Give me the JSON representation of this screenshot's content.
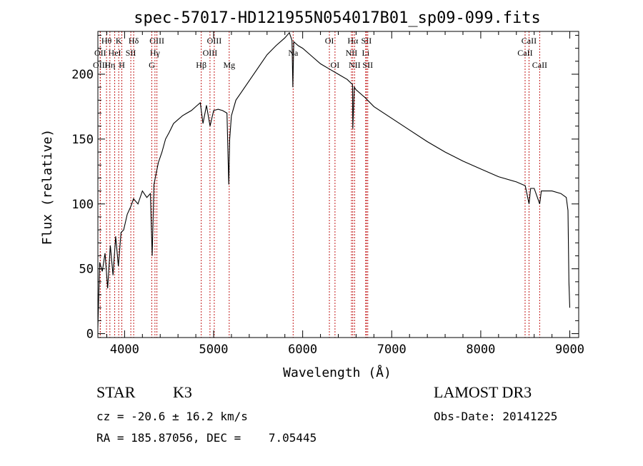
{
  "chart_data": {
    "type": "line",
    "title": "spec-57017-HD121955N054017B01_sp09-099.fits",
    "xlabel": "Wavelength (Å)",
    "ylabel": "Flux (relative)",
    "xlim": [
      3700,
      9100
    ],
    "ylim": [
      -3,
      233
    ],
    "x_ticks": [
      4000,
      5000,
      6000,
      7000,
      8000,
      9000
    ],
    "y_ticks": [
      0,
      50,
      100,
      150,
      200
    ],
    "grid": false,
    "series": [
      {
        "color": "#000000",
        "x": [
          3700,
          3720,
          3750,
          3780,
          3810,
          3840,
          3870,
          3900,
          3930,
          3960,
          3990,
          4030,
          4070,
          4100,
          4150,
          4200,
          4250,
          4290,
          4310,
          4330,
          4350,
          4380,
          4420,
          4460,
          4500,
          4550,
          4600,
          4650,
          4700,
          4750,
          4800,
          4850,
          4880,
          4920,
          4960,
          5000,
          5050,
          5100,
          5150,
          5170,
          5180,
          5200,
          5250,
          5300,
          5400,
          5500,
          5600,
          5700,
          5800,
          5850,
          5880,
          5890,
          5900,
          5950,
          6000,
          6100,
          6200,
          6300,
          6400,
          6500,
          6560,
          6563,
          6580,
          6600,
          6700,
          6800,
          7000,
          7200,
          7400,
          7600,
          7800,
          8000,
          8200,
          8400,
          8500,
          8542,
          8560,
          8600,
          8662,
          8680,
          8700,
          8800,
          8900,
          8960,
          8980,
          8990,
          9000
        ],
        "values": [
          5,
          55,
          48,
          62,
          35,
          68,
          45,
          75,
          52,
          78,
          80,
          92,
          98,
          104,
          100,
          110,
          105,
          108,
          60,
          115,
          122,
          132,
          140,
          150,
          155,
          162,
          165,
          168,
          170,
          172,
          175,
          178,
          162,
          176,
          160,
          172,
          173,
          172,
          170,
          115,
          150,
          168,
          180,
          185,
          195,
          205,
          215,
          222,
          228,
          232,
          226,
          190,
          225,
          222,
          220,
          214,
          208,
          204,
          200,
          196,
          192,
          158,
          190,
          188,
          182,
          175,
          166,
          157,
          148,
          140,
          133,
          127,
          121,
          117,
          114,
          100,
          112,
          112,
          100,
          110,
          110,
          110,
          108,
          105,
          95,
          40,
          20
        ]
      }
    ],
    "spectral_lines": [
      {
        "label": "Hθ",
        "x": 3797,
        "row": 0
      },
      {
        "label": "OII",
        "x": 3727,
        "row": 1
      },
      {
        "label": "OIII",
        "x": 3727,
        "row": 2
      },
      {
        "label": "K",
        "x": 3934,
        "row": 0
      },
      {
        "label": "HeI",
        "x": 3889,
        "row": 1
      },
      {
        "label": "Hη",
        "x": 3835,
        "row": 2
      },
      {
        "label": "Hδ",
        "x": 4102,
        "row": 0
      },
      {
        "label": "SII",
        "x": 4070,
        "row": 1
      },
      {
        "label": "H",
        "x": 3969,
        "row": 2
      },
      {
        "label": "OIII",
        "x": 4363,
        "row": 0
      },
      {
        "label": "Hγ",
        "x": 4341,
        "row": 1
      },
      {
        "label": "G",
        "x": 4305,
        "row": 2
      },
      {
        "label": "OIII",
        "x": 5007,
        "row": 0
      },
      {
        "label": "OIII",
        "x": 4959,
        "row": 1
      },
      {
        "label": "Hβ",
        "x": 4861,
        "row": 2
      },
      {
        "label": "Mg",
        "x": 5175,
        "row": 2
      },
      {
        "label": "Na",
        "x": 5893,
        "row": 1
      },
      {
        "label": "OI",
        "x": 6300,
        "row": 0
      },
      {
        "label": "OI",
        "x": 6363,
        "row": 2
      },
      {
        "label": "Hα",
        "x": 6563,
        "row": 0
      },
      {
        "label": "NII",
        "x": 6548,
        "row": 1
      },
      {
        "label": "NII",
        "x": 6583,
        "row": 2
      },
      {
        "label": "SII",
        "x": 6716,
        "row": 0
      },
      {
        "label": "Li",
        "x": 6708,
        "row": 1
      },
      {
        "label": "SII",
        "x": 6731,
        "row": 2
      },
      {
        "label": "CaII",
        "x": 8542,
        "row": 0
      },
      {
        "label": "CaII",
        "x": 8498,
        "row": 1
      },
      {
        "label": "CaII",
        "x": 8662,
        "row": 2
      }
    ]
  },
  "info": {
    "object_class": "STAR",
    "subclass": "K3",
    "survey": "LAMOST DR3",
    "redshift": "cz = -20.6 ± 16.2 km/s",
    "obs_date": "Obs-Date: 20141225",
    "coords": "RA = 185.87056, DEC =    7.05445"
  }
}
